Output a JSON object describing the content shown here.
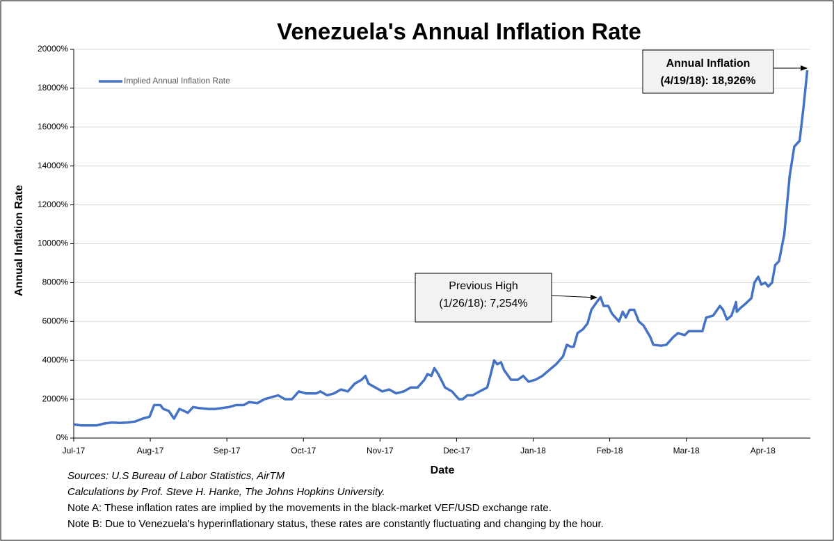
{
  "chart_data": {
    "type": "line",
    "title": "Venezuela's Annual Inflation Rate",
    "x_label": "Date",
    "y_label": "Annual Inflation Rate",
    "xlim": [
      0,
      9.62
    ],
    "xticks": [
      {
        "value": 0,
        "label": "Jul-17"
      },
      {
        "value": 1,
        "label": "Aug-17"
      },
      {
        "value": 2,
        "label": "Sep-17"
      },
      {
        "value": 3,
        "label": "Oct-17"
      },
      {
        "value": 4,
        "label": "Nov-17"
      },
      {
        "value": 5,
        "label": "Dec-17"
      },
      {
        "value": 6,
        "label": "Jan-18"
      },
      {
        "value": 7,
        "label": "Feb-18"
      },
      {
        "value": 8,
        "label": "Mar-18"
      },
      {
        "value": 9,
        "label": "Apr-18"
      }
    ],
    "ylim": [
      0,
      20000
    ],
    "yticks": [
      {
        "value": 0,
        "label": "0%"
      },
      {
        "value": 2000,
        "label": "2000%"
      },
      {
        "value": 4000,
        "label": "4000%"
      },
      {
        "value": 6000,
        "label": "6000%"
      },
      {
        "value": 8000,
        "label": "8000%"
      },
      {
        "value": 10000,
        "label": "10000%"
      },
      {
        "value": 12000,
        "label": "12000%"
      },
      {
        "value": 14000,
        "label": "14000%"
      },
      {
        "value": 16000,
        "label": "16000%"
      },
      {
        "value": 18000,
        "label": "18000%"
      },
      {
        "value": 20000,
        "label": "20000%"
      }
    ],
    "grid": true,
    "legend": "top-left",
    "x": [
      0,
      0.1,
      0.2,
      0.3,
      0.4,
      0.5,
      0.6,
      0.7,
      0.8,
      0.9,
      0.99,
      1.05,
      1.13,
      1.17,
      1.24,
      1.31,
      1.38,
      1.44,
      1.49,
      1.56,
      1.63,
      1.76,
      1.85,
      1.94,
      2.03,
      2.12,
      2.22,
      2.29,
      2.4,
      2.49,
      2.58,
      2.67,
      2.76,
      2.85,
      2.94,
      3.03,
      3.17,
      3.22,
      3.31,
      3.4,
      3.49,
      3.58,
      3.67,
      3.76,
      3.81,
      3.85,
      3.94,
      4.03,
      4.12,
      4.21,
      4.31,
      4.4,
      4.49,
      4.58,
      4.62,
      4.67,
      4.71,
      4.76,
      4.85,
      4.94,
      5.03,
      5.08,
      5.14,
      5.21,
      5.3,
      5.4,
      5.44,
      5.49,
      5.53,
      5.58,
      5.62,
      5.71,
      5.8,
      5.87,
      5.94,
      6.03,
      6.12,
      6.21,
      6.3,
      6.39,
      6.44,
      6.49,
      6.53,
      6.58,
      6.65,
      6.71,
      6.76,
      6.83,
      6.88,
      6.92,
      6.98,
      7.03,
      7.12,
      7.17,
      7.21,
      7.26,
      7.32,
      7.38,
      7.44,
      7.53,
      7.57,
      7.67,
      7.74,
      7.83,
      7.89,
      7.98,
      8.03,
      8.1,
      8.21,
      8.26,
      8.35,
      8.44,
      8.48,
      8.53,
      8.59,
      8.65,
      8.66,
      8.71,
      8.77,
      8.85,
      8.89,
      8.94,
      8.98,
      9.03,
      9.07,
      9.12,
      9.16,
      9.21,
      9.28,
      9.35,
      9.41,
      9.48,
      9.53,
      9.58
    ],
    "series": [
      {
        "name": "Implied Annual Inflation Rate",
        "color": "#4472c4",
        "values": [
          700,
          650,
          650,
          650,
          750,
          800,
          780,
          800,
          850,
          1000,
          1100,
          1700,
          1700,
          1500,
          1400,
          1000,
          1500,
          1400,
          1300,
          1600,
          1550,
          1500,
          1500,
          1550,
          1600,
          1700,
          1700,
          1850,
          1800,
          2000,
          2100,
          2200,
          2000,
          2000,
          2400,
          2300,
          2300,
          2400,
          2200,
          2300,
          2500,
          2400,
          2800,
          3000,
          3200,
          2800,
          2600,
          2400,
          2500,
          2300,
          2400,
          2600,
          2600,
          3000,
          3300,
          3200,
          3600,
          3300,
          2600,
          2400,
          2000,
          2000,
          2200,
          2200,
          2400,
          2600,
          3200,
          4000,
          3800,
          3900,
          3500,
          3000,
          3000,
          3200,
          2900,
          3000,
          3200,
          3500,
          3800,
          4200,
          4800,
          4700,
          4700,
          5400,
          5600,
          5900,
          6600,
          7000,
          7254,
          6800,
          6800,
          6400,
          6000,
          6500,
          6200,
          6600,
          6600,
          6000,
          5800,
          5200,
          4800,
          4750,
          4800,
          5200,
          5400,
          5300,
          5500,
          5500,
          5500,
          6200,
          6300,
          6800,
          6600,
          6100,
          6300,
          7000,
          6500,
          6700,
          6900,
          7200,
          8000,
          8300,
          7900,
          8000,
          7800,
          8000,
          8900,
          9100,
          10500,
          13500,
          15000,
          15300,
          17000,
          18926
        ]
      }
    ],
    "annotations": [
      {
        "lines": [
          "Previous High",
          "(1/26/18): 7,254%"
        ]
      },
      {
        "lines": [
          "Annual Inflation",
          "(4/19/18): 18,926%"
        ]
      }
    ],
    "notes": [
      "Sources: U.S Bureau of Labor Statistics, AirTM",
      "Calculations by Prof. Steve H. Hanke, The Johns Hopkins University.",
      "Note A: These inflation rates are implied by the movements in the black-market VEF/USD exchange rate.",
      "Note B: Due to Venezuela's hyperinflationary status, these rates are constantly fluctuating and changing by the hour."
    ]
  }
}
